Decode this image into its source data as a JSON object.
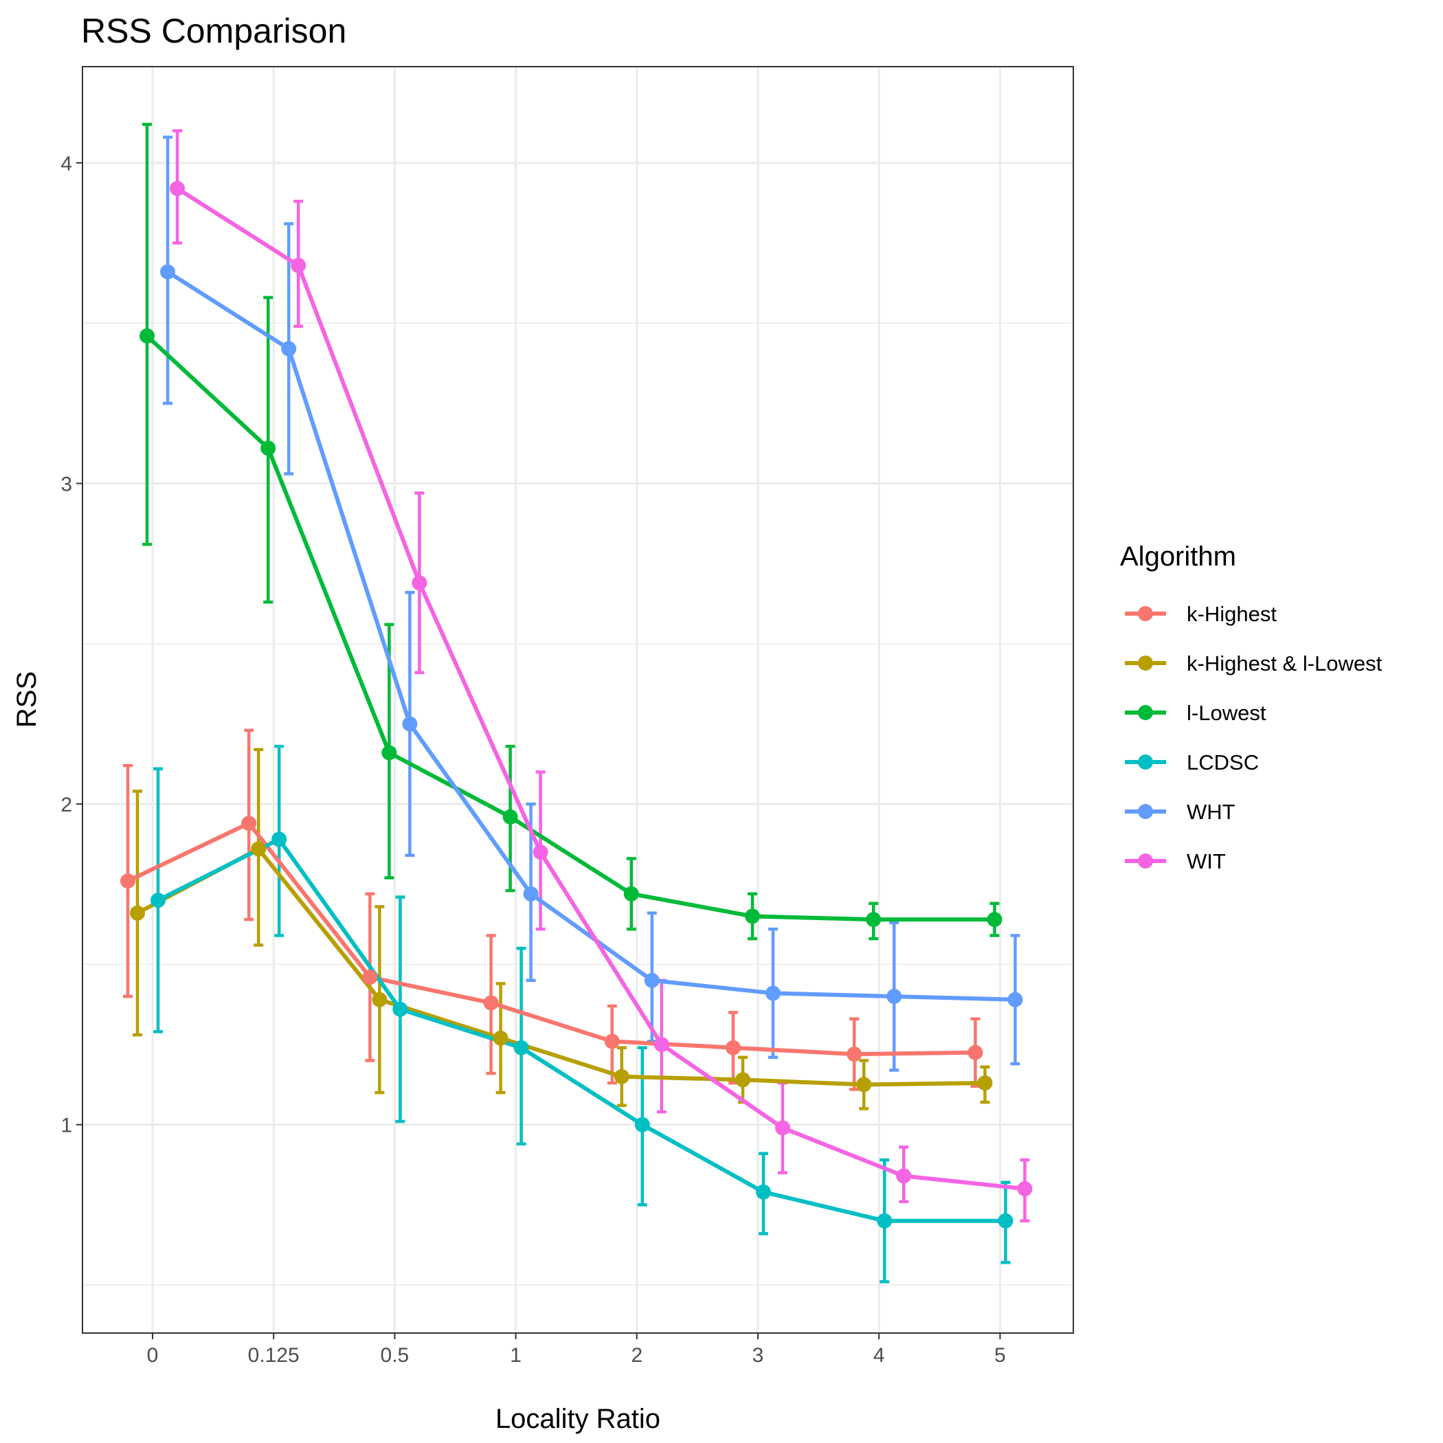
{
  "chart_data": {
    "type": "line",
    "title": "RSS Comparison",
    "xlabel": "Locality Ratio",
    "ylabel": "RSS",
    "categories": [
      "0",
      "0.125",
      "0.5",
      "1",
      "2",
      "3",
      "4",
      "5"
    ],
    "yticks": [
      "1",
      "2",
      "3",
      "4"
    ],
    "ylim": [
      0.35,
      4.3
    ],
    "grid": true,
    "legend": {
      "title": "Algorithm",
      "position": "right"
    },
    "series": [
      {
        "name": "k-Highest",
        "color": "#F8766D",
        "values": [
          1.76,
          1.94,
          1.46,
          1.38,
          1.26,
          1.24,
          1.22,
          1.225
        ],
        "lower": [
          1.4,
          1.64,
          1.2,
          1.16,
          1.13,
          1.13,
          1.11,
          1.12
        ],
        "upper": [
          2.12,
          2.23,
          1.72,
          1.59,
          1.37,
          1.35,
          1.33,
          1.33
        ]
      },
      {
        "name": "k-Highest & l-Lowest",
        "color": "#B79F00",
        "values": [
          1.66,
          1.86,
          1.39,
          1.27,
          1.15,
          1.14,
          1.125,
          1.13
        ],
        "lower": [
          1.28,
          1.56,
          1.1,
          1.1,
          1.06,
          1.07,
          1.05,
          1.07
        ],
        "upper": [
          2.04,
          2.17,
          1.68,
          1.44,
          1.24,
          1.21,
          1.2,
          1.18
        ]
      },
      {
        "name": "l-Lowest",
        "color": "#00BA38",
        "values": [
          3.46,
          3.11,
          2.16,
          1.96,
          1.72,
          1.65,
          1.64,
          1.64
        ],
        "lower": [
          2.81,
          2.63,
          1.77,
          1.73,
          1.61,
          1.58,
          1.58,
          1.59
        ],
        "upper": [
          4.12,
          3.58,
          2.56,
          2.18,
          1.83,
          1.72,
          1.69,
          1.69
        ]
      },
      {
        "name": "LCDSC",
        "color": "#00BFC4",
        "values": [
          1.7,
          1.89,
          1.36,
          1.24,
          1.0,
          0.79,
          0.7,
          0.7
        ],
        "lower": [
          1.29,
          1.59,
          1.01,
          0.94,
          0.75,
          0.66,
          0.51,
          0.57
        ],
        "upper": [
          2.11,
          2.18,
          1.71,
          1.55,
          1.24,
          0.91,
          0.89,
          0.82
        ]
      },
      {
        "name": "WHT",
        "color": "#619CFF",
        "values": [
          3.66,
          3.42,
          2.25,
          1.72,
          1.45,
          1.41,
          1.4,
          1.39
        ],
        "lower": [
          3.25,
          3.03,
          1.84,
          1.45,
          1.26,
          1.21,
          1.17,
          1.19
        ],
        "upper": [
          4.08,
          3.81,
          2.66,
          2.0,
          1.66,
          1.61,
          1.63,
          1.59
        ]
      },
      {
        "name": "WIT",
        "color": "#F564E3",
        "values": [
          3.92,
          3.68,
          2.69,
          1.85,
          1.25,
          0.99,
          0.84,
          0.8
        ],
        "lower": [
          3.75,
          3.49,
          2.41,
          1.61,
          1.04,
          0.85,
          0.76,
          0.7
        ],
        "upper": [
          4.1,
          3.88,
          2.97,
          2.1,
          1.45,
          1.13,
          0.93,
          0.89
        ]
      }
    ]
  }
}
